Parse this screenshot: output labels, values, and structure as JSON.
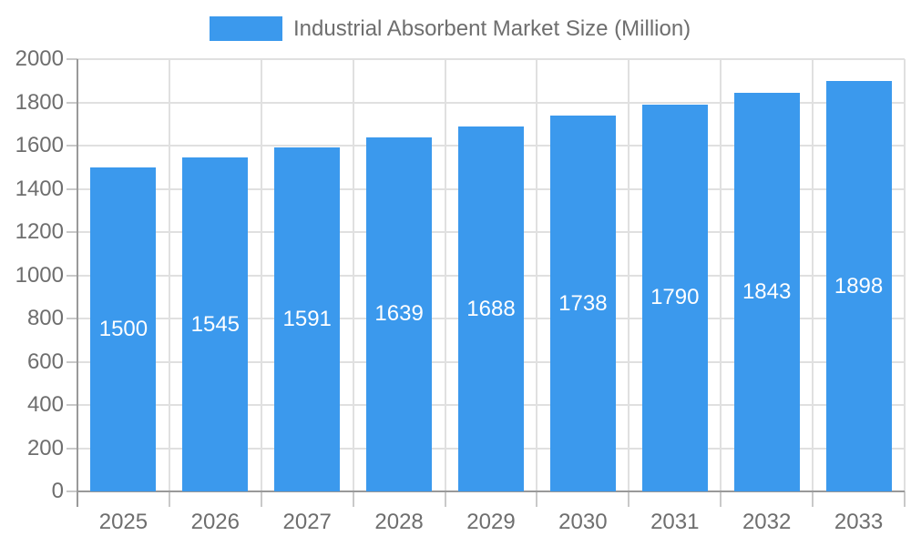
{
  "legend": {
    "label": "Industrial Absorbent Market Size (Million)"
  },
  "colors": {
    "bar": "#3B99ED",
    "grid": "#E0E0E0",
    "tick": "#C9C9C9",
    "axis": "#999999",
    "axis_text": "#6E6E6E",
    "value_label": "#FFFFFF"
  },
  "chart_data": {
    "type": "bar",
    "title": "Industrial Absorbent Market Size (Million)",
    "categories": [
      "2025",
      "2026",
      "2027",
      "2028",
      "2029",
      "2030",
      "2031",
      "2032",
      "2033"
    ],
    "values": [
      1500,
      1545,
      1591,
      1639,
      1688,
      1738,
      1790,
      1843,
      1898
    ],
    "xlabel": "",
    "ylabel": "",
    "ylim": [
      0,
      2000
    ],
    "yticks": [
      0,
      200,
      400,
      600,
      800,
      1000,
      1200,
      1400,
      1600,
      1800,
      2000
    ],
    "grid": true,
    "legend_position": "top-center",
    "value_labels_position": "inside-middle"
  }
}
